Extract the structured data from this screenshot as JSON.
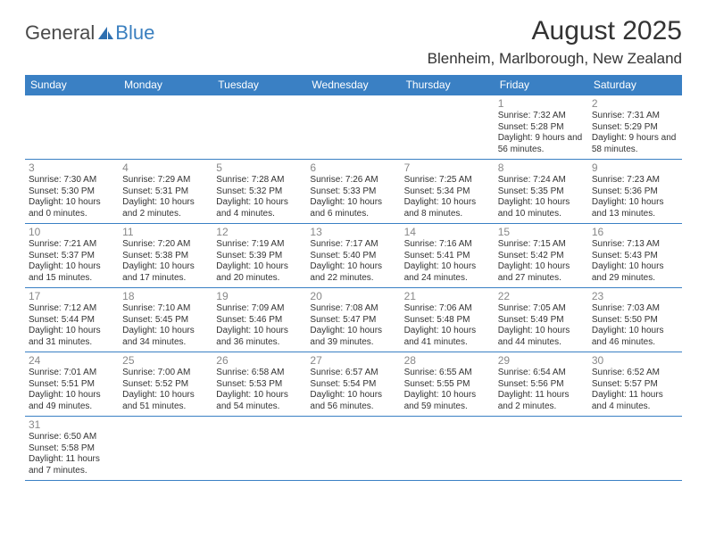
{
  "logo": {
    "text1": "General",
    "text2": "Blue"
  },
  "title": "August 2025",
  "location": "Blenheim, Marlborough, New Zealand",
  "colors": {
    "header_bg": "#3a80c4",
    "header_fg": "#ffffff",
    "border": "#3a80c4",
    "daynum": "#888888",
    "text": "#333333",
    "logo_gray": "#4a4a4a",
    "logo_blue": "#3a7fbf"
  },
  "day_headers": [
    "Sunday",
    "Monday",
    "Tuesday",
    "Wednesday",
    "Thursday",
    "Friday",
    "Saturday"
  ],
  "weeks": [
    [
      null,
      null,
      null,
      null,
      null,
      {
        "n": "1",
        "sr": "7:32 AM",
        "ss": "5:28 PM",
        "dl": "9 hours and 56 minutes."
      },
      {
        "n": "2",
        "sr": "7:31 AM",
        "ss": "5:29 PM",
        "dl": "9 hours and 58 minutes."
      }
    ],
    [
      {
        "n": "3",
        "sr": "7:30 AM",
        "ss": "5:30 PM",
        "dl": "10 hours and 0 minutes."
      },
      {
        "n": "4",
        "sr": "7:29 AM",
        "ss": "5:31 PM",
        "dl": "10 hours and 2 minutes."
      },
      {
        "n": "5",
        "sr": "7:28 AM",
        "ss": "5:32 PM",
        "dl": "10 hours and 4 minutes."
      },
      {
        "n": "6",
        "sr": "7:26 AM",
        "ss": "5:33 PM",
        "dl": "10 hours and 6 minutes."
      },
      {
        "n": "7",
        "sr": "7:25 AM",
        "ss": "5:34 PM",
        "dl": "10 hours and 8 minutes."
      },
      {
        "n": "8",
        "sr": "7:24 AM",
        "ss": "5:35 PM",
        "dl": "10 hours and 10 minutes."
      },
      {
        "n": "9",
        "sr": "7:23 AM",
        "ss": "5:36 PM",
        "dl": "10 hours and 13 minutes."
      }
    ],
    [
      {
        "n": "10",
        "sr": "7:21 AM",
        "ss": "5:37 PM",
        "dl": "10 hours and 15 minutes."
      },
      {
        "n": "11",
        "sr": "7:20 AM",
        "ss": "5:38 PM",
        "dl": "10 hours and 17 minutes."
      },
      {
        "n": "12",
        "sr": "7:19 AM",
        "ss": "5:39 PM",
        "dl": "10 hours and 20 minutes."
      },
      {
        "n": "13",
        "sr": "7:17 AM",
        "ss": "5:40 PM",
        "dl": "10 hours and 22 minutes."
      },
      {
        "n": "14",
        "sr": "7:16 AM",
        "ss": "5:41 PM",
        "dl": "10 hours and 24 minutes."
      },
      {
        "n": "15",
        "sr": "7:15 AM",
        "ss": "5:42 PM",
        "dl": "10 hours and 27 minutes."
      },
      {
        "n": "16",
        "sr": "7:13 AM",
        "ss": "5:43 PM",
        "dl": "10 hours and 29 minutes."
      }
    ],
    [
      {
        "n": "17",
        "sr": "7:12 AM",
        "ss": "5:44 PM",
        "dl": "10 hours and 31 minutes."
      },
      {
        "n": "18",
        "sr": "7:10 AM",
        "ss": "5:45 PM",
        "dl": "10 hours and 34 minutes."
      },
      {
        "n": "19",
        "sr": "7:09 AM",
        "ss": "5:46 PM",
        "dl": "10 hours and 36 minutes."
      },
      {
        "n": "20",
        "sr": "7:08 AM",
        "ss": "5:47 PM",
        "dl": "10 hours and 39 minutes."
      },
      {
        "n": "21",
        "sr": "7:06 AM",
        "ss": "5:48 PM",
        "dl": "10 hours and 41 minutes."
      },
      {
        "n": "22",
        "sr": "7:05 AM",
        "ss": "5:49 PM",
        "dl": "10 hours and 44 minutes."
      },
      {
        "n": "23",
        "sr": "7:03 AM",
        "ss": "5:50 PM",
        "dl": "10 hours and 46 minutes."
      }
    ],
    [
      {
        "n": "24",
        "sr": "7:01 AM",
        "ss": "5:51 PM",
        "dl": "10 hours and 49 minutes."
      },
      {
        "n": "25",
        "sr": "7:00 AM",
        "ss": "5:52 PM",
        "dl": "10 hours and 51 minutes."
      },
      {
        "n": "26",
        "sr": "6:58 AM",
        "ss": "5:53 PM",
        "dl": "10 hours and 54 minutes."
      },
      {
        "n": "27",
        "sr": "6:57 AM",
        "ss": "5:54 PM",
        "dl": "10 hours and 56 minutes."
      },
      {
        "n": "28",
        "sr": "6:55 AM",
        "ss": "5:55 PM",
        "dl": "10 hours and 59 minutes."
      },
      {
        "n": "29",
        "sr": "6:54 AM",
        "ss": "5:56 PM",
        "dl": "11 hours and 2 minutes."
      },
      {
        "n": "30",
        "sr": "6:52 AM",
        "ss": "5:57 PM",
        "dl": "11 hours and 4 minutes."
      }
    ],
    [
      {
        "n": "31",
        "sr": "6:50 AM",
        "ss": "5:58 PM",
        "dl": "11 hours and 7 minutes."
      },
      null,
      null,
      null,
      null,
      null,
      null
    ]
  ],
  "labels": {
    "sunrise": "Sunrise: ",
    "sunset": "Sunset: ",
    "daylight": "Daylight: "
  }
}
